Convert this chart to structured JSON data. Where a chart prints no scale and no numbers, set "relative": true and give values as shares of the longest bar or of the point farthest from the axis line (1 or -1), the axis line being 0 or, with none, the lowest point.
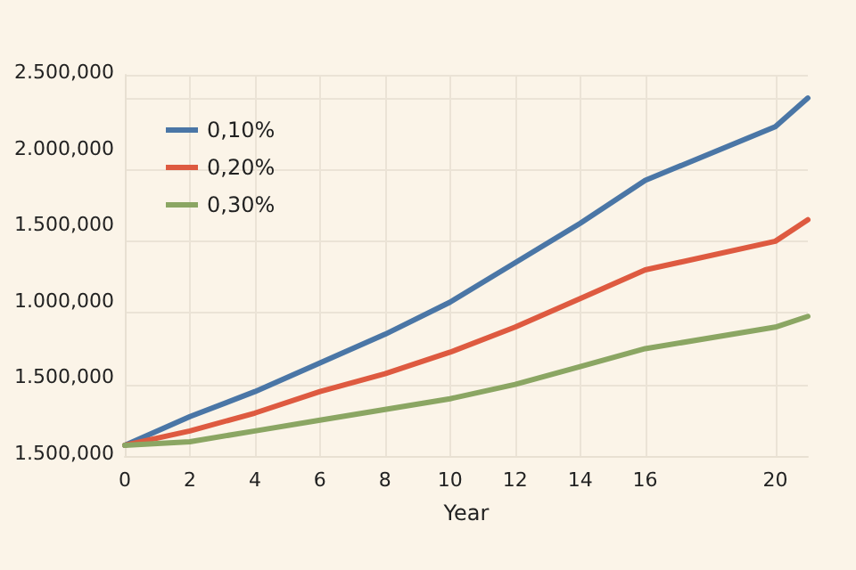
{
  "chart_data": {
    "type": "line",
    "xlabel": "Year",
    "relative": true,
    "annotations": [
      "2.500,000",
      "2.000,000",
      "1.500,000",
      "1.000,000",
      "1.500,000",
      "1.500,000"
    ],
    "x": [
      0,
      2,
      4,
      6,
      8,
      10,
      12,
      14,
      16,
      20,
      21
    ],
    "series": [
      {
        "name": "0,10%",
        "color": "#4a76a6",
        "values": [
          0.03,
          0.11,
          0.18,
          0.26,
          0.34,
          0.43,
          0.54,
          0.65,
          0.77,
          0.92,
          1
        ]
      },
      {
        "name": "0,20%",
        "color": "#de5a40",
        "values": [
          0.03,
          0.07,
          0.12,
          0.18,
          0.23,
          0.29,
          0.36,
          0.44,
          0.52,
          0.6,
          0.66
        ]
      },
      {
        "name": "0,30%",
        "color": "#8ba663",
        "values": [
          0.03,
          0.04,
          0.07,
          0.1,
          0.13,
          0.16,
          0.2,
          0.25,
          0.3,
          0.36,
          0.39
        ]
      }
    ],
    "xlim": [
      0,
      21
    ],
    "xticks": [
      0,
      2,
      4,
      6,
      8,
      10,
      12,
      14,
      16,
      20
    ],
    "grid": true,
    "legend": "top left",
    "marker": "none",
    "line_style": "solid"
  }
}
